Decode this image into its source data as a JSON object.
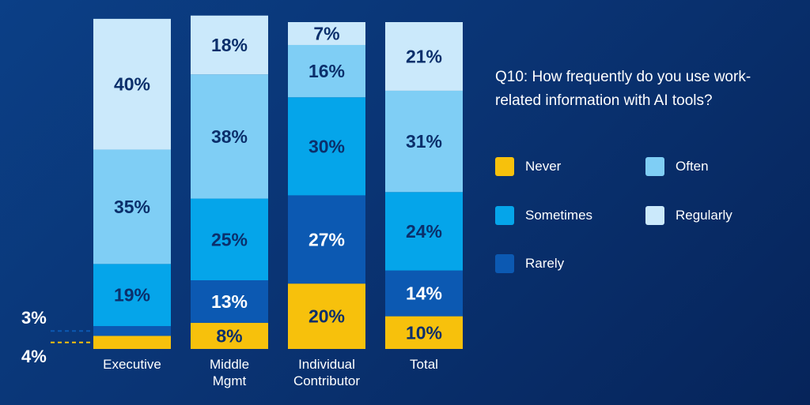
{
  "chart_data": {
    "type": "stacked-bar",
    "title": "Q10: How frequently do you use work-related information with AI tools?",
    "categories": [
      "Executive",
      "Middle Mgmt",
      "Individual Contributor",
      "Total"
    ],
    "series": [
      {
        "name": "Never",
        "color": "#f7c10c",
        "values": [
          4,
          8,
          20,
          10
        ]
      },
      {
        "name": "Rarely",
        "color": "#0c59b2",
        "values": [
          3,
          13,
          27,
          14
        ]
      },
      {
        "name": "Sometimes",
        "color": "#05a5ea",
        "values": [
          19,
          25,
          30,
          24
        ]
      },
      {
        "name": "Often",
        "color": "#7fcef5",
        "values": [
          35,
          38,
          16,
          31
        ]
      },
      {
        "name": "Regularly",
        "color": "#cbe9fb",
        "values": [
          40,
          18,
          7,
          21
        ]
      }
    ],
    "value_labels": [
      [
        "4%",
        "8%",
        "20%",
        "10%"
      ],
      [
        "3%",
        "13%",
        "27%",
        "14%"
      ],
      [
        "19%",
        "25%",
        "30%",
        "24%"
      ],
      [
        "35%",
        "38%",
        "16%",
        "31%"
      ],
      [
        "40%",
        "18%",
        "7%",
        "21%"
      ]
    ],
    "category_label_lines": [
      [
        "Executive"
      ],
      [
        "Middle",
        "Mgmt"
      ],
      [
        "Individual",
        "Contributor"
      ],
      [
        "Total"
      ]
    ],
    "ylim": [
      0,
      100
    ]
  },
  "colors": {
    "label_dark": "#0b2f6b",
    "label_light": "#ffffff"
  }
}
